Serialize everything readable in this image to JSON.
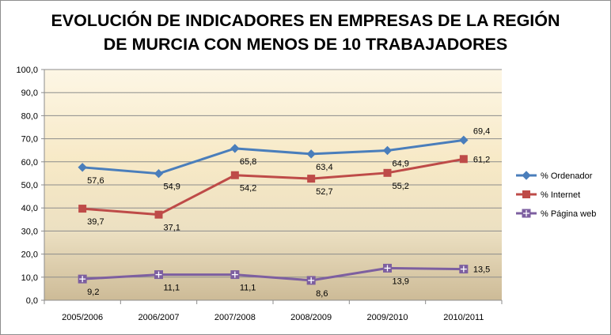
{
  "chart_data": {
    "type": "line",
    "title_line1": "EVOLUCIÓN DE INDICADORES EN EMPRESAS DE LA REGIÓN",
    "title_line2": "DE MURCIA CON MENOS DE 10 TRABAJADORES",
    "categories": [
      "2005/2006",
      "2006/2007",
      "2007/2008",
      "2008/2009",
      "2009/2010",
      "2010/2011"
    ],
    "ylim": [
      0,
      100
    ],
    "y_ticks": [
      "0,0",
      "10,0",
      "20,0",
      "30,0",
      "40,0",
      "50,0",
      "60,0",
      "70,0",
      "80,0",
      "90,0",
      "100,0"
    ],
    "y_tick_values": [
      0,
      10,
      20,
      30,
      40,
      50,
      60,
      70,
      80,
      90,
      100
    ],
    "grid": true,
    "legend_position": "right",
    "plot_background": "gradient light cream to tan",
    "series": [
      {
        "name": "% Ordenador",
        "color": "#4a7ebb",
        "marker": "diamond",
        "values": [
          57.6,
          54.9,
          65.8,
          63.4,
          64.9,
          69.4
        ],
        "labels": [
          "57,6",
          "54,9",
          "65,8",
          "63,4",
          "64,9",
          "69,4"
        ]
      },
      {
        "name": "% Internet",
        "color": "#be4b48",
        "marker": "square",
        "values": [
          39.7,
          37.1,
          54.2,
          52.7,
          55.2,
          61.2
        ],
        "labels": [
          "39,7",
          "37,1",
          "54,2",
          "52,7",
          "55,2",
          "61,2"
        ]
      },
      {
        "name": "% Página web",
        "color": "#7d5fa0",
        "marker": "square-cross",
        "values": [
          9.2,
          11.1,
          11.1,
          8.6,
          13.9,
          13.5
        ],
        "labels": [
          "9,2",
          "11,1",
          "11,1",
          "8,6",
          "13,9",
          "13,5"
        ]
      }
    ]
  }
}
